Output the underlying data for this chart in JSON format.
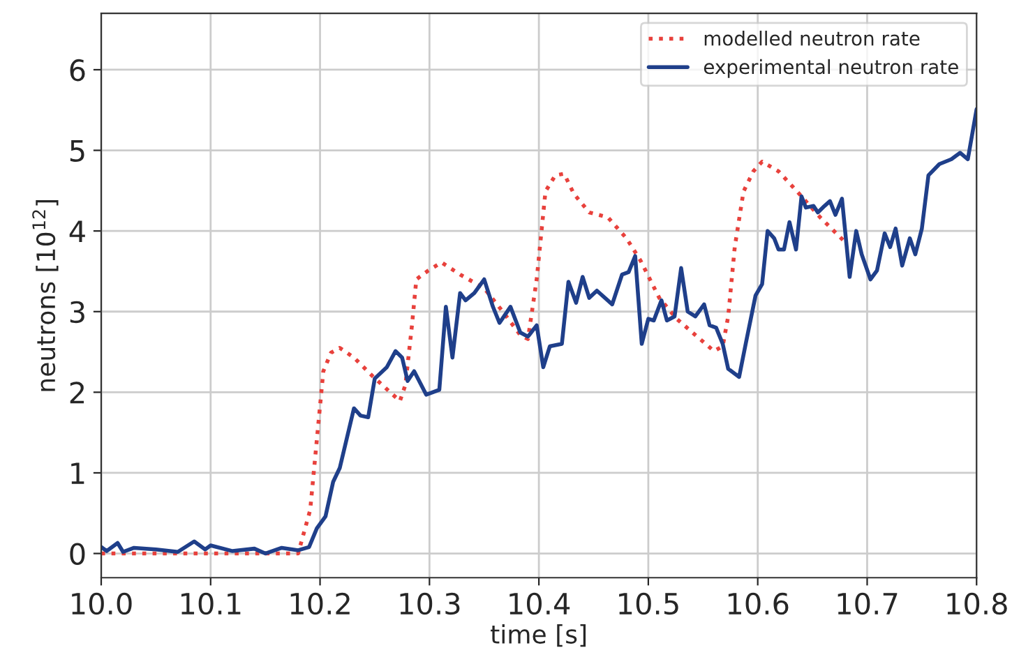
{
  "chart_data": {
    "type": "line",
    "xlabel": "time [s]",
    "ylabel": "neutrons [10$^{12}$]",
    "xlim": [
      10.0,
      10.8
    ],
    "ylim": [
      -0.3,
      6.7
    ],
    "xticks": [
      {
        "value": 10.0,
        "label": "10.0"
      },
      10.1,
      10.2,
      10.3,
      10.4,
      10.5,
      10.6,
      10.7,
      10.8
    ],
    "yticks": [
      0,
      1,
      2,
      3,
      4,
      5,
      6
    ],
    "grid": true,
    "legend": "top right",
    "series": [
      {
        "name": "modelled neutron rate",
        "color": "#e8413c",
        "line_style": "dotted",
        "x": [
          10.0,
          10.05,
          10.1,
          10.15,
          10.18,
          10.191,
          10.197,
          10.203,
          10.21,
          10.218,
          10.231,
          10.248,
          10.273,
          10.278,
          10.284,
          10.288,
          10.299,
          10.311,
          10.328,
          10.35,
          10.367,
          10.383,
          10.39,
          10.398,
          10.406,
          10.415,
          10.423,
          10.432,
          10.446,
          10.463,
          10.48,
          10.493,
          10.51,
          10.526,
          10.543,
          10.56,
          10.568,
          10.573,
          10.579,
          10.587,
          10.596,
          10.604,
          10.619,
          10.636,
          10.657,
          10.68
        ],
        "values": [
          0,
          0,
          0,
          0,
          0,
          0.54,
          1.4,
          2.26,
          2.49,
          2.55,
          2.43,
          2.2,
          1.89,
          2.09,
          2.83,
          3.4,
          3.51,
          3.61,
          3.46,
          3.29,
          3.0,
          2.71,
          2.66,
          3.4,
          4.49,
          4.69,
          4.71,
          4.46,
          4.23,
          4.17,
          3.91,
          3.63,
          3.17,
          2.91,
          2.71,
          2.51,
          2.57,
          2.94,
          3.8,
          4.49,
          4.74,
          4.86,
          4.74,
          4.49,
          4.17,
          3.86
        ]
      },
      {
        "name": "experimental neutron rate",
        "color": "#1f3f8a",
        "line_style": "solid",
        "x": [
          10.0,
          10.005,
          10.015,
          10.02,
          10.03,
          10.05,
          10.07,
          10.085,
          10.095,
          10.1,
          10.12,
          10.14,
          10.15,
          10.165,
          10.18,
          10.19,
          10.197,
          10.205,
          10.212,
          10.218,
          10.231,
          10.237,
          10.244,
          10.25,
          10.261,
          10.269,
          10.275,
          10.28,
          10.286,
          10.297,
          10.309,
          10.315,
          10.321,
          10.328,
          10.333,
          10.341,
          10.35,
          10.358,
          10.364,
          10.374,
          10.383,
          10.39,
          10.398,
          10.404,
          10.41,
          10.421,
          10.427,
          10.434,
          10.44,
          10.446,
          10.453,
          10.467,
          10.476,
          10.482,
          10.488,
          10.494,
          10.5,
          10.505,
          10.512,
          10.517,
          10.524,
          10.53,
          10.536,
          10.543,
          10.551,
          10.556,
          10.562,
          10.568,
          10.573,
          10.583,
          10.589,
          10.598,
          10.604,
          10.609,
          10.615,
          10.619,
          10.624,
          10.629,
          10.635,
          10.64,
          10.644,
          10.651,
          10.655,
          10.661,
          10.666,
          10.671,
          10.677,
          10.684,
          10.69,
          10.695,
          10.703,
          10.709,
          10.716,
          10.721,
          10.726,
          10.732,
          10.739,
          10.744,
          10.75,
          10.756,
          10.766,
          10.777,
          10.785,
          10.792,
          10.8
        ],
        "values": [
          0.08,
          0.03,
          0.13,
          0.02,
          0.07,
          0.05,
          0.02,
          0.15,
          0.05,
          0.1,
          0.03,
          0.06,
          0.0,
          0.07,
          0.04,
          0.08,
          0.31,
          0.46,
          0.89,
          1.06,
          1.8,
          1.71,
          1.69,
          2.17,
          2.31,
          2.51,
          2.43,
          2.14,
          2.26,
          1.97,
          2.03,
          3.06,
          2.43,
          3.23,
          3.14,
          3.23,
          3.4,
          3.06,
          2.86,
          3.06,
          2.74,
          2.69,
          2.83,
          2.31,
          2.57,
          2.6,
          3.37,
          3.11,
          3.43,
          3.17,
          3.26,
          3.09,
          3.46,
          3.49,
          3.69,
          2.6,
          2.91,
          2.89,
          3.14,
          2.89,
          2.94,
          3.54,
          3.0,
          2.94,
          3.09,
          2.83,
          2.8,
          2.6,
          2.29,
          2.19,
          2.6,
          3.2,
          3.34,
          4.0,
          3.91,
          3.77,
          3.77,
          4.11,
          3.77,
          4.43,
          4.29,
          4.31,
          4.23,
          4.31,
          4.37,
          4.2,
          4.4,
          3.43,
          4.0,
          3.71,
          3.4,
          3.51,
          3.97,
          3.8,
          4.03,
          3.57,
          3.91,
          3.71,
          4.03,
          4.69,
          4.83,
          4.89,
          4.97,
          4.89,
          5.51
        ]
      }
    ]
  }
}
